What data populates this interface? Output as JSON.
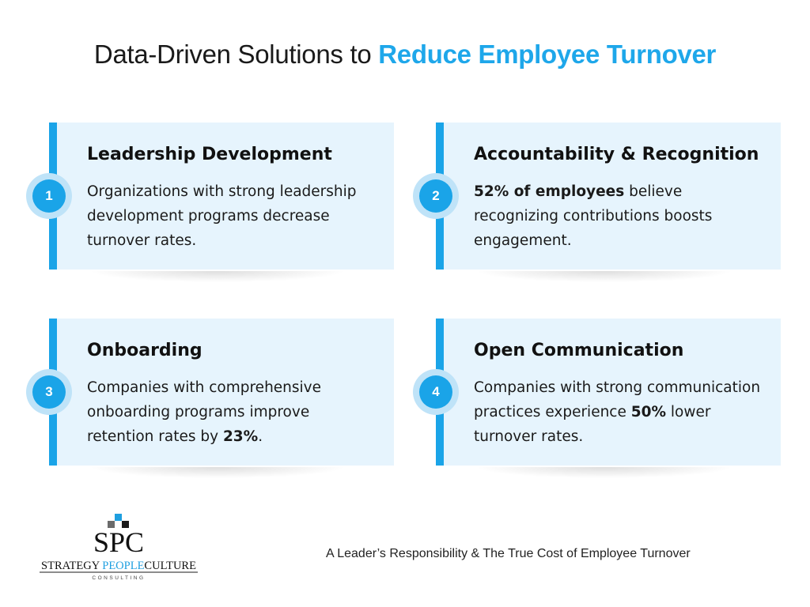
{
  "title": {
    "prefix": "Data-Driven Solutions to ",
    "highlight": "Reduce Employee Turnover"
  },
  "cards": [
    {
      "number": "1",
      "title": "Leadership Development",
      "body_pre": "Organizations with strong leadership development programs decrease turnover rates.",
      "body_bold": "",
      "body_post": ""
    },
    {
      "number": "2",
      "title": "Accountability & Recognition",
      "body_pre": "",
      "body_bold": "52% of employees",
      "body_post": " believe recognizing contributions boosts engagement."
    },
    {
      "number": "3",
      "title": "Onboarding",
      "body_pre": "Companies with comprehensive onboarding programs improve retention rates by ",
      "body_bold": "23%",
      "body_post": "."
    },
    {
      "number": "4",
      "title": "Open Communication",
      "body_pre": "Companies with strong communication practices experience ",
      "body_bold": "50%",
      "body_post": " lower turnover rates."
    }
  ],
  "logo": {
    "monogram": "SPC",
    "name_part1": "STRATEGY ",
    "name_part2": "PEOPLE",
    "name_part3": "CULTURE",
    "tagline": "CONSULTING"
  },
  "footer": {
    "text": "A Leader’s Responsibility &  The True Cost of Employee Turnover"
  },
  "colors": {
    "accent": "#1aa4e8",
    "card_bg": "#e6f4fd",
    "badge_ring": "#bfe3f8"
  }
}
